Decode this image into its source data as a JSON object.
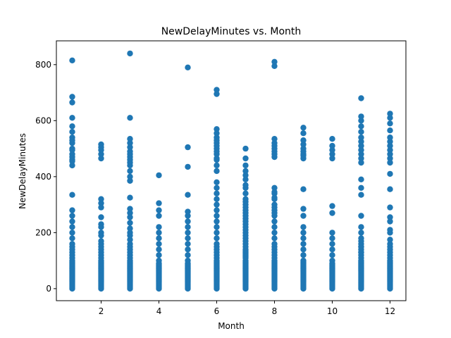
{
  "chart_data": {
    "type": "scatter",
    "title": "NewDelayMinutes vs. Month",
    "xlabel": "Month",
    "ylabel": "NewDelayMinutes",
    "xlim": [
      0.45,
      12.55
    ],
    "ylim": [
      -43,
      885
    ],
    "xticks": [
      2,
      4,
      6,
      8,
      10,
      12
    ],
    "yticks": [
      0,
      200,
      400,
      600,
      800
    ],
    "grid": false,
    "marker_color": "#1f77b4",
    "series": [
      {
        "x": [
          1,
          1,
          1,
          1,
          1,
          1,
          1,
          1,
          1,
          1,
          1,
          1,
          1,
          1,
          1,
          1,
          1,
          1,
          1,
          1,
          1,
          1,
          1,
          1,
          1,
          1,
          1,
          1,
          1,
          1,
          1,
          1,
          1,
          1,
          1,
          1,
          1,
          1,
          1,
          1,
          1,
          1,
          1,
          1,
          1,
          1,
          1,
          1,
          1,
          1,
          2,
          2,
          2,
          2,
          2,
          2,
          2,
          2,
          2,
          2,
          2,
          2,
          2,
          2,
          2,
          2,
          2,
          2,
          2,
          2,
          2,
          2,
          2,
          2,
          2,
          2,
          2,
          2,
          2,
          2,
          2,
          2,
          2,
          2,
          2,
          2,
          2,
          2,
          2,
          2,
          2,
          3,
          3,
          3,
          3,
          3,
          3,
          3,
          3,
          3,
          3,
          3,
          3,
          3,
          3,
          3,
          3,
          3,
          3,
          3,
          3,
          3,
          3,
          3,
          3,
          3,
          3,
          3,
          3,
          3,
          3,
          3,
          3,
          3,
          3,
          3,
          3,
          3,
          3,
          3,
          3,
          3,
          3,
          3,
          3,
          3,
          3,
          3,
          3,
          3,
          3,
          4,
          4,
          4,
          4,
          4,
          4,
          4,
          4,
          4,
          4,
          4,
          4,
          4,
          4,
          4,
          4,
          4,
          4,
          4,
          4,
          4,
          4,
          4,
          4,
          4,
          4,
          4,
          4,
          4,
          4,
          5,
          5,
          5,
          5,
          5,
          5,
          5,
          5,
          5,
          5,
          5,
          5,
          5,
          5,
          5,
          5,
          5,
          5,
          5,
          5,
          5,
          5,
          5,
          5,
          5,
          5,
          5,
          5,
          5,
          5,
          5,
          5,
          5,
          6,
          6,
          6,
          6,
          6,
          6,
          6,
          6,
          6,
          6,
          6,
          6,
          6,
          6,
          6,
          6,
          6,
          6,
          6,
          6,
          6,
          6,
          6,
          6,
          6,
          6,
          6,
          6,
          6,
          6,
          6,
          6,
          6,
          6,
          6,
          6,
          6,
          6,
          6,
          6,
          6,
          6,
          6,
          6,
          6,
          6,
          6,
          6,
          6,
          6,
          6,
          6,
          6,
          7,
          7,
          7,
          7,
          7,
          7,
          7,
          7,
          7,
          7,
          7,
          7,
          7,
          7,
          7,
          7,
          7,
          7,
          7,
          7,
          7,
          7,
          7,
          7,
          7,
          7,
          7,
          7,
          7,
          7,
          7,
          7,
          7,
          7,
          7,
          7,
          7,
          7,
          7,
          7,
          7,
          7,
          7,
          7,
          7,
          7,
          7,
          7,
          7,
          7,
          7,
          7,
          7,
          7,
          7,
          8,
          8,
          8,
          8,
          8,
          8,
          8,
          8,
          8,
          8,
          8,
          8,
          8,
          8,
          8,
          8,
          8,
          8,
          8,
          8,
          8,
          8,
          8,
          8,
          8,
          8,
          8,
          8,
          8,
          8,
          8,
          8,
          8,
          8,
          8,
          8,
          8,
          8,
          8,
          8,
          8,
          8,
          8,
          8,
          8,
          8,
          8,
          8,
          8,
          8,
          9,
          9,
          9,
          9,
          9,
          9,
          9,
          9,
          9,
          9,
          9,
          9,
          9,
          9,
          9,
          9,
          9,
          9,
          9,
          9,
          9,
          9,
          9,
          9,
          9,
          9,
          9,
          9,
          9,
          9,
          9,
          9,
          9,
          9,
          9,
          9,
          9,
          9,
          9,
          10,
          10,
          10,
          10,
          10,
          10,
          10,
          10,
          10,
          10,
          10,
          10,
          10,
          10,
          10,
          10,
          10,
          10,
          10,
          10,
          10,
          10,
          10,
          10,
          10,
          10,
          10,
          10,
          10,
          10,
          10,
          10,
          11,
          11,
          11,
          11,
          11,
          11,
          11,
          11,
          11,
          11,
          11,
          11,
          11,
          11,
          11,
          11,
          11,
          11,
          11,
          11,
          11,
          11,
          11,
          11,
          11,
          11,
          11,
          11,
          11,
          11,
          11,
          11,
          11,
          11,
          11,
          11,
          11,
          11,
          11,
          11,
          11,
          11,
          11,
          11,
          11,
          11,
          11,
          11,
          11,
          12,
          12,
          12,
          12,
          12,
          12,
          12,
          12,
          12,
          12,
          12,
          12,
          12,
          12,
          12,
          12,
          12,
          12,
          12,
          12,
          12,
          12,
          12,
          12,
          12,
          12,
          12,
          12,
          12,
          12,
          12,
          12,
          12,
          12,
          12,
          12,
          12,
          12,
          12,
          12,
          12,
          12,
          12,
          12,
          12,
          12
        ],
        "y": [
          0,
          5,
          10,
          15,
          20,
          25,
          30,
          35,
          40,
          45,
          50,
          55,
          60,
          65,
          70,
          75,
          80,
          85,
          90,
          95,
          100,
          110,
          120,
          130,
          140,
          150,
          160,
          180,
          200,
          220,
          240,
          260,
          280,
          335,
          440,
          460,
          480,
          500,
          520,
          540,
          560,
          580,
          610,
          665,
          685,
          815,
          455,
          470,
          495,
          530,
          0,
          5,
          10,
          15,
          20,
          25,
          30,
          35,
          40,
          45,
          50,
          55,
          60,
          65,
          70,
          75,
          80,
          85,
          90,
          95,
          100,
          110,
          120,
          130,
          140,
          150,
          160,
          170,
          190,
          200,
          220,
          230,
          255,
          290,
          305,
          320,
          465,
          480,
          495,
          505,
          515,
          0,
          5,
          10,
          15,
          20,
          25,
          30,
          35,
          40,
          45,
          50,
          55,
          60,
          65,
          70,
          75,
          80,
          85,
          90,
          95,
          100,
          110,
          120,
          130,
          140,
          150,
          160,
          175,
          190,
          200,
          215,
          235,
          255,
          270,
          285,
          325,
          385,
          400,
          420,
          440,
          450,
          470,
          490,
          505,
          520,
          535,
          610,
          840,
          460,
          480,
          0,
          5,
          10,
          15,
          20,
          25,
          30,
          35,
          40,
          45,
          50,
          55,
          60,
          65,
          70,
          75,
          80,
          85,
          90,
          100,
          120,
          140,
          160,
          180,
          200,
          220,
          260,
          280,
          305,
          405,
          0,
          5,
          10,
          15,
          20,
          25,
          30,
          35,
          40,
          45,
          50,
          55,
          60,
          65,
          70,
          75,
          80,
          85,
          90,
          100,
          120,
          140,
          160,
          180,
          200,
          220,
          240,
          260,
          275,
          335,
          435,
          505,
          790,
          0,
          5,
          10,
          15,
          20,
          25,
          30,
          35,
          40,
          45,
          50,
          55,
          60,
          65,
          70,
          75,
          80,
          85,
          90,
          95,
          100,
          110,
          120,
          130,
          140,
          150,
          160,
          180,
          200,
          220,
          240,
          260,
          280,
          300,
          320,
          340,
          360,
          380,
          420,
          440,
          460,
          480,
          500,
          520,
          540,
          555,
          570,
          695,
          710,
          465,
          490,
          510,
          530,
          0,
          5,
          10,
          15,
          20,
          25,
          30,
          35,
          40,
          45,
          50,
          55,
          60,
          65,
          70,
          75,
          80,
          85,
          90,
          95,
          100,
          110,
          120,
          130,
          140,
          150,
          160,
          170,
          180,
          190,
          200,
          210,
          220,
          230,
          240,
          250,
          260,
          270,
          280,
          290,
          300,
          310,
          320,
          340,
          360,
          370,
          390,
          405,
          420,
          440,
          465,
          500,
          115,
          125,
          135,
          0,
          5,
          10,
          15,
          20,
          25,
          30,
          35,
          40,
          45,
          50,
          55,
          60,
          65,
          70,
          75,
          80,
          85,
          90,
          95,
          100,
          110,
          120,
          130,
          140,
          150,
          160,
          180,
          200,
          220,
          240,
          260,
          280,
          300,
          320,
          340,
          360,
          470,
          480,
          490,
          500,
          510,
          520,
          535,
          795,
          810,
          325,
          345,
          270,
          290,
          0,
          5,
          10,
          15,
          20,
          25,
          30,
          35,
          40,
          45,
          50,
          55,
          60,
          65,
          70,
          75,
          80,
          85,
          90,
          95,
          100,
          120,
          140,
          160,
          180,
          200,
          220,
          260,
          285,
          355,
          465,
          475,
          490,
          500,
          515,
          530,
          555,
          575,
          480,
          0,
          5,
          10,
          15,
          20,
          25,
          30,
          35,
          40,
          45,
          50,
          55,
          60,
          65,
          70,
          75,
          80,
          85,
          90,
          100,
          120,
          140,
          160,
          180,
          200,
          270,
          295,
          465,
          480,
          495,
          510,
          535,
          0,
          5,
          10,
          15,
          20,
          25,
          30,
          35,
          40,
          45,
          50,
          55,
          60,
          65,
          70,
          75,
          80,
          85,
          90,
          95,
          100,
          110,
          120,
          130,
          140,
          150,
          160,
          180,
          200,
          220,
          260,
          335,
          360,
          390,
          450,
          465,
          480,
          495,
          510,
          525,
          540,
          560,
          580,
          600,
          615,
          680,
          130,
          150,
          170,
          0,
          5,
          10,
          15,
          20,
          25,
          30,
          35,
          40,
          45,
          50,
          55,
          60,
          65,
          70,
          75,
          80,
          85,
          90,
          95,
          100,
          110,
          120,
          130,
          140,
          150,
          160,
          175,
          200,
          210,
          240,
          255,
          290,
          355,
          410,
          450,
          465,
          480,
          495,
          510,
          525,
          540,
          565,
          590,
          610,
          625
        ]
      }
    ]
  }
}
